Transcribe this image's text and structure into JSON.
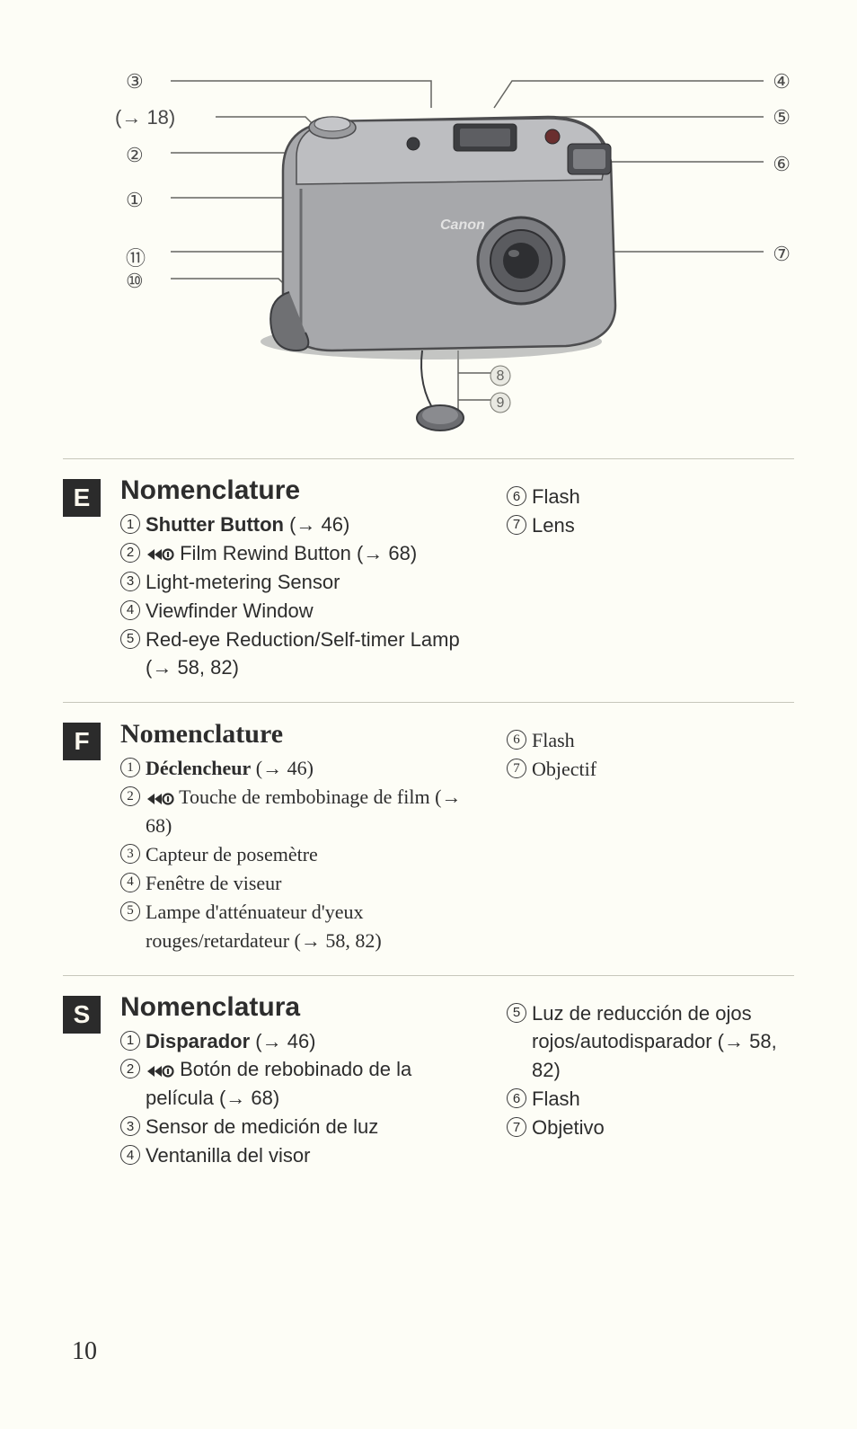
{
  "diagram": {
    "camera_body_fill": "#a7a8ab",
    "camera_body_stroke": "#4d4d4f",
    "line_color": "#646460",
    "labels": {
      "l3": "③",
      "l_ref": "(→ 18)",
      "l2": "②",
      "l1": "①",
      "l11": "⑪",
      "l10": "⑩",
      "r4": "④",
      "r5": "⑤",
      "r6": "⑥",
      "r7": "⑦",
      "b8": "⑧",
      "b9": "⑨"
    }
  },
  "sections": {
    "E": {
      "badge": "E",
      "title": "Nomenclature",
      "serif": false,
      "left": [
        {
          "n": "1",
          "bold": "Shutter Button",
          "rest": " (→ 46)"
        },
        {
          "n": "2",
          "icon": true,
          "rest": " Film Rewind Button (→ 68)"
        },
        {
          "n": "3",
          "rest": "Light-metering Sensor"
        },
        {
          "n": "4",
          "rest": "Viewfinder Window"
        },
        {
          "n": "5",
          "rest": "Red-eye Reduction/Self-timer Lamp (→ 58, 82)"
        }
      ],
      "right": [
        {
          "n": "6",
          "rest": "Flash"
        },
        {
          "n": "7",
          "rest": "Lens"
        }
      ]
    },
    "F": {
      "badge": "F",
      "title": "Nomenclature",
      "serif": true,
      "left": [
        {
          "n": "1",
          "bold": "Déclencheur",
          "rest": " (→ 46)"
        },
        {
          "n": "2",
          "icon": true,
          "rest": " Touche de rembobinage de film (→ 68)"
        },
        {
          "n": "3",
          "rest": "Capteur de posemètre"
        },
        {
          "n": "4",
          "rest": "Fenêtre de viseur"
        },
        {
          "n": "5",
          "rest": "Lampe d'atténuateur d'yeux rouges/retardateur (→ 58, 82)"
        }
      ],
      "right": [
        {
          "n": "6",
          "rest": "Flash"
        },
        {
          "n": "7",
          "rest": "Objectif"
        }
      ]
    },
    "S": {
      "badge": "S",
      "title": "Nomenclatura",
      "serif": false,
      "left": [
        {
          "n": "1",
          "bold": "Disparador",
          "rest": " (→ 46)"
        },
        {
          "n": "2",
          "icon": true,
          "rest": " Botón de rebobinado de la película (→ 68)"
        },
        {
          "n": "3",
          "rest": "Sensor de medición de luz"
        },
        {
          "n": "4",
          "rest": "Ventanilla del visor"
        }
      ],
      "right": [
        {
          "n": "5",
          "rest": "Luz de reducción de ojos rojos/autodisparador (→ 58, 82)"
        },
        {
          "n": "6",
          "rest": "Flash"
        },
        {
          "n": "7",
          "rest": "Objetivo"
        }
      ]
    }
  },
  "page_number": "10"
}
